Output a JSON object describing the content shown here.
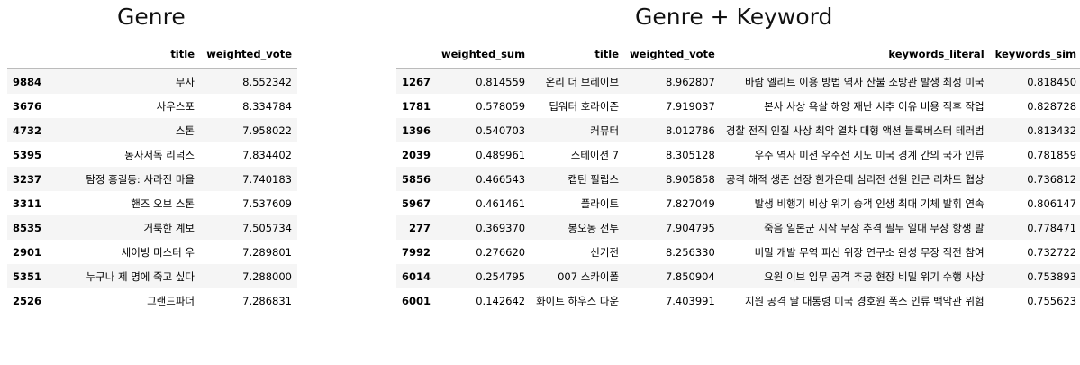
{
  "left": {
    "heading": "Genre",
    "columns": [
      "",
      "title",
      "weighted_vote"
    ],
    "rows": [
      [
        "9884",
        "무사",
        "8.552342"
      ],
      [
        "3676",
        "사우스포",
        "8.334784"
      ],
      [
        "4732",
        "스톤",
        "7.958022"
      ],
      [
        "5395",
        "동사서독 리덕스",
        "7.834402"
      ],
      [
        "3237",
        "탐정 홍길동: 사라진 마을",
        "7.740183"
      ],
      [
        "3311",
        "핸즈 오브 스톤",
        "7.537609"
      ],
      [
        "8535",
        "거룩한 계보",
        "7.505734"
      ],
      [
        "2901",
        "세이빙 미스터 우",
        "7.289801"
      ],
      [
        "5351",
        "누구나 제 명에 죽고 싶다",
        "7.288000"
      ],
      [
        "2526",
        "그랜드파더",
        "7.286831"
      ]
    ]
  },
  "right": {
    "heading": "Genre + Keyword",
    "columns": [
      "",
      "weighted_sum",
      "title",
      "weighted_vote",
      "keywords_literal",
      "keywords_sim"
    ],
    "rows": [
      [
        "1267",
        "0.814559",
        "온리 더 브레이브",
        "8.962807",
        "바람 엘리트 이용 방법 역사 산불 소방관 발생 최정 미국",
        "0.818450"
      ],
      [
        "1781",
        "0.578059",
        "딥워터 호라이즌",
        "7.919037",
        "본사 사상 욕살 해양 재난 시추 이유 비용 직후 작업",
        "0.828728"
      ],
      [
        "1396",
        "0.540703",
        "커뮤터",
        "8.012786",
        "경찰 전직 인질 사상 최악 열차 대형 액션 블록버스터 테러범",
        "0.813432"
      ],
      [
        "2039",
        "0.489961",
        "스테이션 7",
        "8.305128",
        "우주 역사 미션 우주선 시도 미국 경계 간의 국가 인류",
        "0.781859"
      ],
      [
        "5856",
        "0.466543",
        "캡틴 필립스",
        "8.905858",
        "공격 해적 생존 선장 한가운데 심리전 선원 인근 리차드 협상",
        "0.736812"
      ],
      [
        "5967",
        "0.461461",
        "플라이트",
        "7.827049",
        "발생 비행기 비상 위기 승객 인생 최대 기체 발휘 연속",
        "0.806147"
      ],
      [
        "277",
        "0.369370",
        "봉오동 전투",
        "7.904795",
        "죽음 일본군 시작 무장 추격 필두 일대 무장 항쟁 발",
        "0.778471"
      ],
      [
        "7992",
        "0.276620",
        "신기전",
        "8.256330",
        "비밀 개발 무역 피신 위장 연구소 완성 무장 직전 참여",
        "0.732722"
      ],
      [
        "6014",
        "0.254795",
        "007 스카이폴",
        "7.850904",
        "요원 이브 임무 공격 추궁 현장 비밀 위기 수행 사상",
        "0.753893"
      ],
      [
        "6001",
        "0.142642",
        "화이트 하우스 다운",
        "7.403991",
        "지원 공격 딸 대통령 미국 경호원 폭스 인류 백악관 위험",
        "0.755623"
      ]
    ]
  }
}
